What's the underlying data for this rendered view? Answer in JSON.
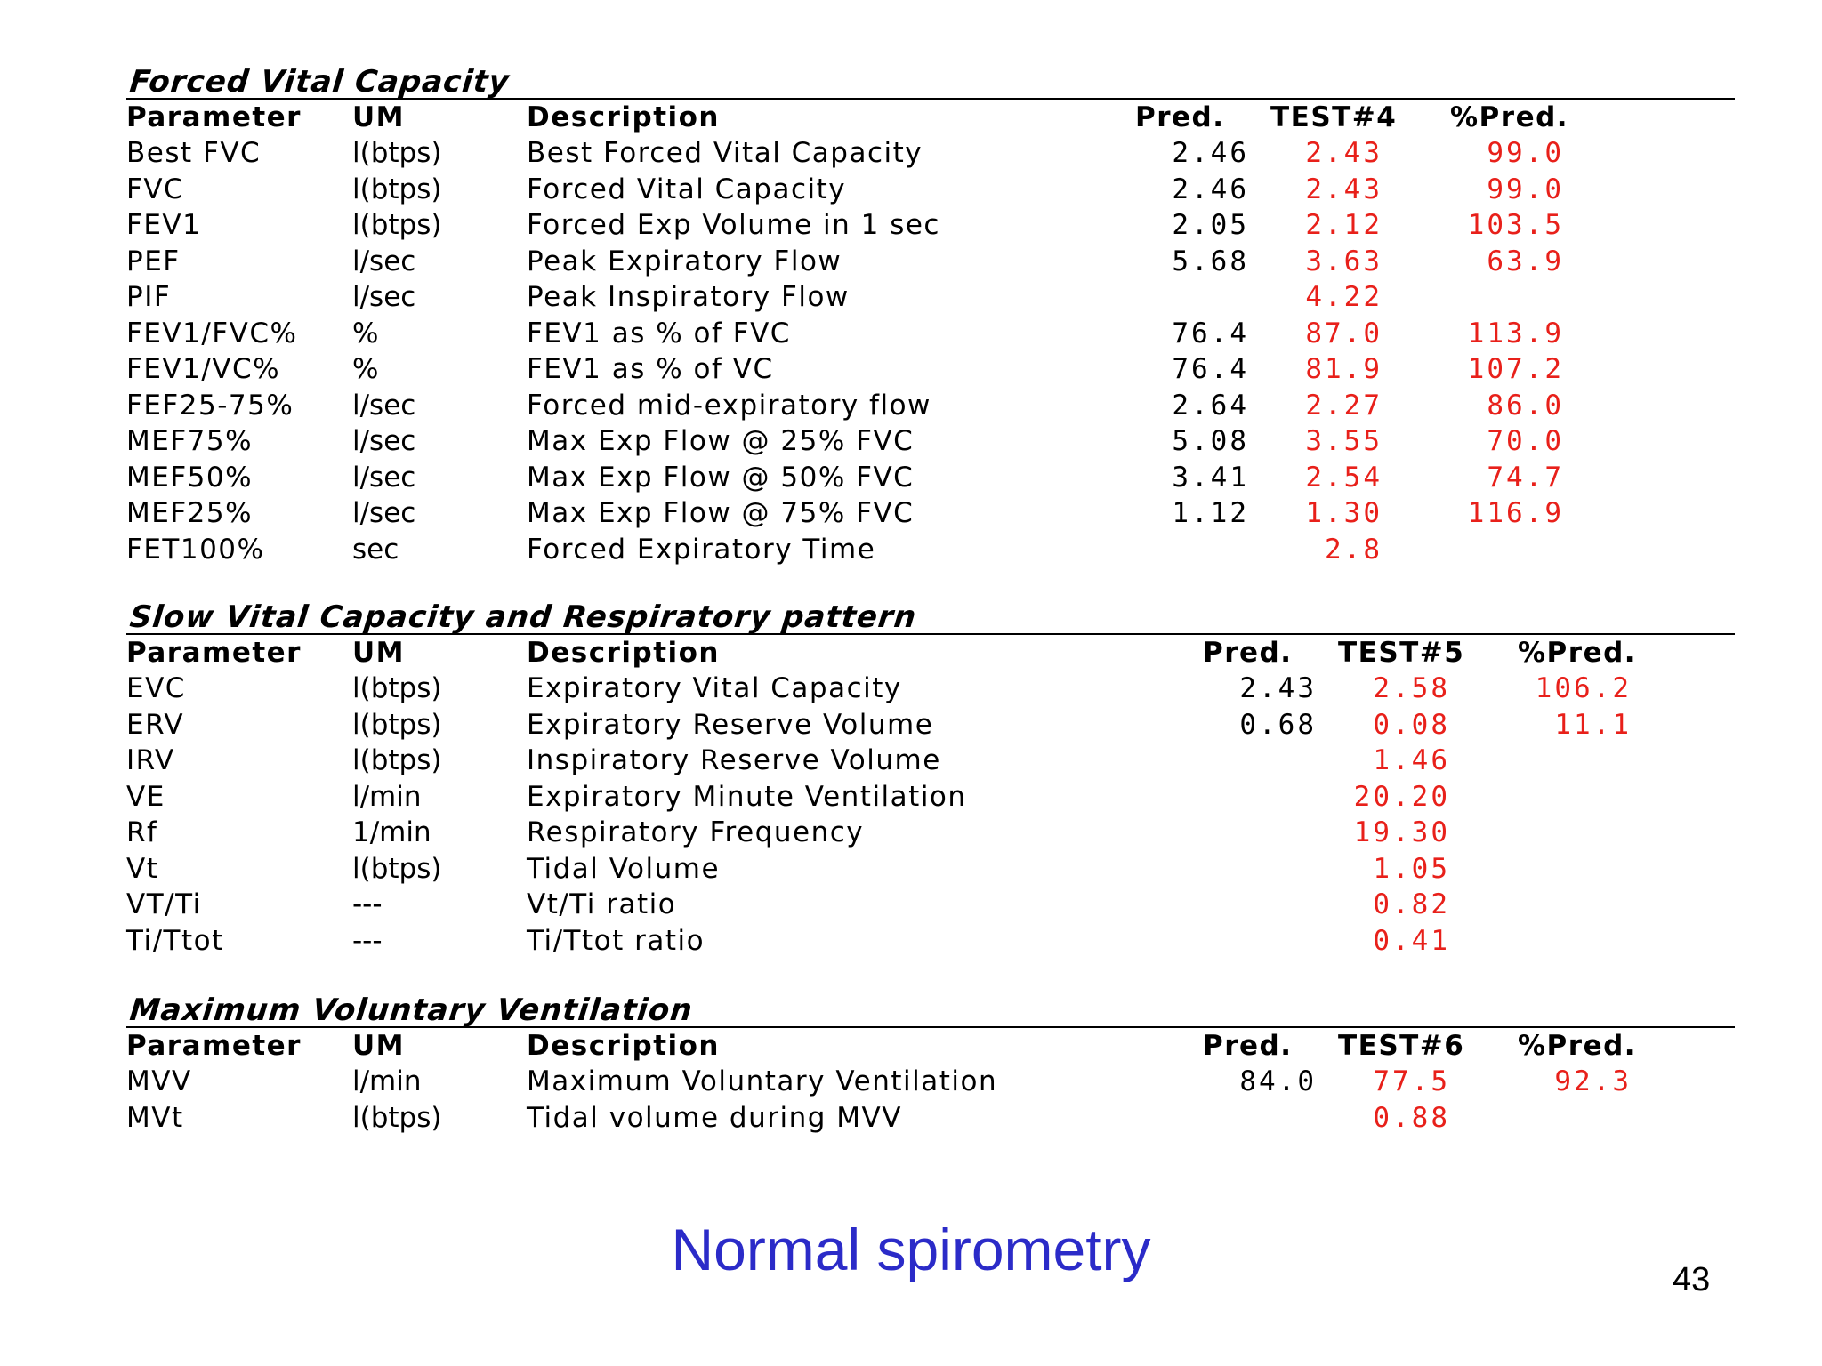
{
  "sections": [
    {
      "title": "Forced Vital Capacity",
      "headers": {
        "param": "Parameter",
        "um": "UM",
        "desc": "Description",
        "pred": "Pred.",
        "test": "TEST#4",
        "pct": "%Pred."
      },
      "rows": [
        {
          "param": "Best FVC",
          "um": "l(btps)",
          "desc": "Best Forced Vital Capacity",
          "pred": "2.46",
          "test": "2.43",
          "pct": "99.0"
        },
        {
          "param": "FVC",
          "um": "l(btps)",
          "desc": "Forced Vital Capacity",
          "pred": "2.46",
          "test": "2.43",
          "pct": "99.0"
        },
        {
          "param": "FEV1",
          "um": "l(btps)",
          "desc": "Forced Exp Volume in 1 sec",
          "pred": "2.05",
          "test": "2.12",
          "pct": "103.5"
        },
        {
          "param": "PEF",
          "um": "l/sec",
          "desc": "Peak Expiratory Flow",
          "pred": "5.68",
          "test": "3.63",
          "pct": "63.9"
        },
        {
          "param": "PIF",
          "um": "l/sec",
          "desc": "Peak Inspiratory Flow",
          "pred": "",
          "test": "4.22",
          "pct": ""
        },
        {
          "param": "FEV1/FVC%",
          "um": "%",
          "desc": "FEV1 as % of FVC",
          "pred": "76.4",
          "test": "87.0",
          "pct": "113.9"
        },
        {
          "param": "FEV1/VC%",
          "um": "%",
          "desc": "FEV1 as % of VC",
          "pred": "76.4",
          "test": "81.9",
          "pct": "107.2"
        },
        {
          "param": "FEF25-75%",
          "um": "l/sec",
          "desc": "Forced mid-expiratory flow",
          "pred": "2.64",
          "test": "2.27",
          "pct": "86.0"
        },
        {
          "param": "MEF75%",
          "um": "l/sec",
          "desc": "Max Exp Flow @ 25% FVC",
          "pred": "5.08",
          "test": "3.55",
          "pct": "70.0"
        },
        {
          "param": "MEF50%",
          "um": "l/sec",
          "desc": "Max Exp Flow @ 50% FVC",
          "pred": "3.41",
          "test": "2.54",
          "pct": "74.7"
        },
        {
          "param": "MEF25%",
          "um": "l/sec",
          "desc": "Max Exp Flow @ 75% FVC",
          "pred": "1.12",
          "test": "1.30",
          "pct": "116.9"
        },
        {
          "param": "FET100%",
          "um": "sec",
          "desc": "Forced Expiratory Time",
          "pred": "",
          "test": "2.8",
          "pct": ""
        }
      ]
    },
    {
      "title": "Slow Vital Capacity and Respiratory pattern",
      "headers": {
        "param": "Parameter",
        "um": "UM",
        "desc": "Description",
        "pred": "Pred.",
        "test": "TEST#5",
        "pct": "%Pred."
      },
      "rows": [
        {
          "param": "EVC",
          "um": "l(btps)",
          "desc": "Expiratory Vital Capacity",
          "pred": "2.43",
          "test": "2.58",
          "pct": "106.2"
        },
        {
          "param": "ERV",
          "um": "l(btps)",
          "desc": "Expiratory Reserve Volume",
          "pred": "0.68",
          "test": "0.08",
          "pct": "11.1"
        },
        {
          "param": "IRV",
          "um": "l(btps)",
          "desc": "Inspiratory Reserve Volume",
          "pred": "",
          "test": "1.46",
          "pct": ""
        },
        {
          "param": "VE",
          "um": "l/min",
          "desc": "Expiratory Minute Ventilation",
          "pred": "",
          "test": "20.20",
          "pct": ""
        },
        {
          "param": "Rf",
          "um": "1/min",
          "desc": "Respiratory Frequency",
          "pred": "",
          "test": "19.30",
          "pct": ""
        },
        {
          "param": "Vt",
          "um": "l(btps)",
          "desc": "Tidal Volume",
          "pred": "",
          "test": "1.05",
          "pct": ""
        },
        {
          "param": "VT/Ti",
          "um": "---",
          "desc": "Vt/Ti ratio",
          "pred": "",
          "test": "0.82",
          "pct": ""
        },
        {
          "param": "Ti/Ttot",
          "um": "---",
          "desc": "Ti/Ttot ratio",
          "pred": "",
          "test": "0.41",
          "pct": ""
        }
      ]
    },
    {
      "title": "Maximum Voluntary Ventilation",
      "headers": {
        "param": "Parameter",
        "um": "UM",
        "desc": "Description",
        "pred": "Pred.",
        "test": "TEST#6",
        "pct": "%Pred."
      },
      "rows": [
        {
          "param": "MVV",
          "um": "l/min",
          "desc": "Maximum Voluntary Ventilation",
          "pred": "84.0",
          "test": "77.5",
          "pct": "92.3"
        },
        {
          "param": "MVt",
          "um": "l(btps)",
          "desc": "Tidal volume during MVV",
          "pred": "",
          "test": "0.88",
          "pct": ""
        }
      ]
    }
  ],
  "footer": {
    "title": "Normal spirometry",
    "page_number": "43"
  },
  "colors": {
    "test_values": "#e8201a",
    "footer_title": "#2b2bc8"
  }
}
